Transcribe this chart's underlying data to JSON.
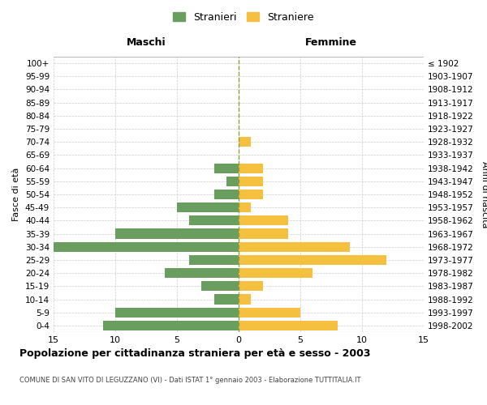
{
  "age_groups": [
    "0-4",
    "5-9",
    "10-14",
    "15-19",
    "20-24",
    "25-29",
    "30-34",
    "35-39",
    "40-44",
    "45-49",
    "50-54",
    "55-59",
    "60-64",
    "65-69",
    "70-74",
    "75-79",
    "80-84",
    "85-89",
    "90-94",
    "95-99",
    "100+"
  ],
  "birth_years": [
    "1998-2002",
    "1993-1997",
    "1988-1992",
    "1983-1987",
    "1978-1982",
    "1973-1977",
    "1968-1972",
    "1963-1967",
    "1958-1962",
    "1953-1957",
    "1948-1952",
    "1943-1947",
    "1938-1942",
    "1933-1937",
    "1928-1932",
    "1923-1927",
    "1918-1922",
    "1913-1917",
    "1908-1912",
    "1903-1907",
    "≤ 1902"
  ],
  "males": [
    11,
    10,
    2,
    3,
    6,
    4,
    15,
    10,
    4,
    5,
    2,
    1,
    2,
    0,
    0,
    0,
    0,
    0,
    0,
    0,
    0
  ],
  "females": [
    8,
    5,
    1,
    2,
    6,
    12,
    9,
    4,
    4,
    1,
    2,
    2,
    2,
    0,
    1,
    0,
    0,
    0,
    0,
    0,
    0
  ],
  "male_color": "#6a9e5f",
  "female_color": "#f5c040",
  "background_color": "#ffffff",
  "grid_color": "#cccccc",
  "title": "Popolazione per cittadinanza straniera per età e sesso - 2003",
  "subtitle": "COMUNE DI SAN VITO DI LEGUZZANO (VI) - Dati ISTAT 1° gennaio 2003 - Elaborazione TUTTITALIA.IT",
  "xlabel_left": "Maschi",
  "xlabel_right": "Femmine",
  "ylabel_left": "Fasce di età",
  "ylabel_right": "Anni di nascita",
  "legend_male": "Stranieri",
  "legend_female": "Straniere",
  "xlim": 15
}
